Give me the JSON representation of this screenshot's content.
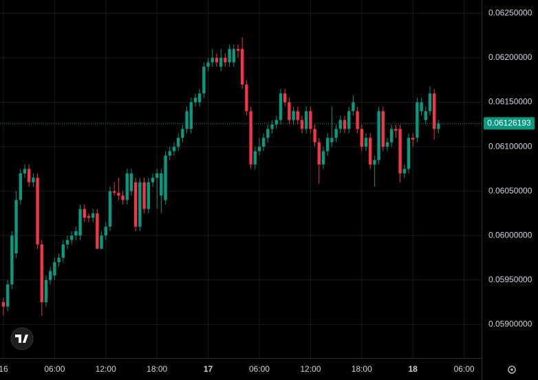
{
  "chart_data": {
    "type": "candlestick",
    "up_color": "#089981",
    "down_color": "#f23645",
    "xlim": [
      -0.4,
      56.05
    ],
    "xticks": [
      {
        "value": 0,
        "label": "16"
      },
      {
        "value": 6,
        "label": "06:00"
      },
      {
        "value": 12,
        "label": "12:00"
      },
      {
        "value": 18,
        "label": "18:00"
      },
      {
        "value": 24,
        "label": "17"
      },
      {
        "value": 30,
        "label": "06:00"
      },
      {
        "value": 36,
        "label": "12:00"
      },
      {
        "value": 42,
        "label": "18:00"
      },
      {
        "value": 48,
        "label": "18"
      },
      {
        "value": 54,
        "label": "06:00"
      }
    ],
    "ylim": [
      0.05863,
      0.06262
    ],
    "yticks": [
      {
        "value": 0.059,
        "label": "0.05900000"
      },
      {
        "value": 0.0595,
        "label": "0.05950000"
      },
      {
        "value": 0.06,
        "label": "0.06000000"
      },
      {
        "value": 0.0605,
        "label": "0.06050000"
      },
      {
        "value": 0.061,
        "label": "0.06100000"
      },
      {
        "value": 0.0615,
        "label": "0.06150000"
      },
      {
        "value": 0.062,
        "label": "0.06200000"
      },
      {
        "value": 0.0625,
        "label": "0.06250000"
      }
    ],
    "grid": true,
    "last_price": 0.06126193,
    "x": [
      0,
      0.5,
      1,
      1.5,
      2,
      2.5,
      3,
      3.5,
      4,
      4.5,
      5,
      5.5,
      6,
      6.5,
      7,
      7.5,
      8,
      8.5,
      9,
      9.5,
      10,
      10.5,
      11,
      11.5,
      12,
      12.5,
      13,
      13.5,
      14,
      14.5,
      15,
      15.5,
      16,
      16.5,
      17,
      17.5,
      18,
      18.5,
      19,
      19.5,
      20,
      20.5,
      21,
      21.5,
      22,
      22.5,
      23,
      23.5,
      24,
      24.5,
      25,
      25.5,
      26,
      26.5,
      27,
      27.5,
      28,
      28.5,
      29,
      29.5,
      30,
      30.5,
      31,
      31.5,
      32,
      32.5,
      33,
      33.5,
      34,
      34.5,
      35,
      35.5,
      36,
      36.5,
      37,
      37.5,
      38,
      38.5,
      39,
      39.5,
      40,
      40.5,
      41,
      41.5,
      42,
      42.5,
      43,
      43.5,
      44,
      44.5,
      45,
      45.5,
      46,
      46.5,
      47,
      47.5,
      48,
      48.5,
      49,
      49.5,
      50,
      50.5,
      51
    ],
    "ohlc": [
      [
        0.05925,
        0.0593,
        0.0591,
        0.0592
      ],
      [
        0.0592,
        0.0595,
        0.05915,
        0.05945
      ],
      [
        0.05945,
        0.06005,
        0.0594,
        0.06
      ],
      [
        0.0598,
        0.0605,
        0.05975,
        0.0604
      ],
      [
        0.0604,
        0.06075,
        0.06035,
        0.0607
      ],
      [
        0.0607,
        0.0608,
        0.06065,
        0.06075
      ],
      [
        0.06075,
        0.0608,
        0.06055,
        0.0606
      ],
      [
        0.0606,
        0.0607,
        0.06055,
        0.06065
      ],
      [
        0.06065,
        0.0607,
        0.05985,
        0.0599
      ],
      [
        0.0599,
        0.05995,
        0.0591,
        0.05925
      ],
      [
        0.05925,
        0.05955,
        0.0592,
        0.0595
      ],
      [
        0.0595,
        0.05965,
        0.05945,
        0.0596
      ],
      [
        0.05955,
        0.05975,
        0.0595,
        0.0597
      ],
      [
        0.0597,
        0.0598,
        0.05965,
        0.05975
      ],
      [
        0.05975,
        0.05995,
        0.0597,
        0.0599
      ],
      [
        0.0599,
        0.06,
        0.05985,
        0.05995
      ],
      [
        0.05995,
        0.06005,
        0.0599,
        0.06
      ],
      [
        0.06,
        0.0601,
        0.05995,
        0.06005
      ],
      [
        0.06,
        0.06035,
        0.05995,
        0.0603
      ],
      [
        0.0603,
        0.06035,
        0.06015,
        0.0602
      ],
      [
        0.06022,
        0.06025,
        0.06015,
        0.0602
      ],
      [
        0.0602,
        0.0603,
        0.06015,
        0.06025
      ],
      [
        0.06025,
        0.0603,
        0.05985,
        0.05985
      ],
      [
        0.05985,
        0.06005,
        0.05985,
        0.06
      ],
      [
        0.06,
        0.06015,
        0.05995,
        0.0601
      ],
      [
        0.0601,
        0.06055,
        0.06005,
        0.0605
      ],
      [
        0.0605,
        0.0606,
        0.06045,
        0.06048
      ],
      [
        0.06048,
        0.06065,
        0.0604,
        0.06045
      ],
      [
        0.06045,
        0.0605,
        0.06035,
        0.0604
      ],
      [
        0.0604,
        0.06075,
        0.06035,
        0.0607
      ],
      [
        0.0605,
        0.06075,
        0.06045,
        0.0607
      ],
      [
        0.0606,
        0.06065,
        0.06005,
        0.0601
      ],
      [
        0.0601,
        0.06065,
        0.06005,
        0.0606
      ],
      [
        0.0606,
        0.06065,
        0.06025,
        0.0603
      ],
      [
        0.0603,
        0.06065,
        0.06025,
        0.0606
      ],
      [
        0.0606,
        0.0607,
        0.06055,
        0.06065
      ],
      [
        0.06065,
        0.06075,
        0.0603,
        0.0607
      ],
      [
        0.06045,
        0.06075,
        0.06025,
        0.0607
      ],
      [
        0.0604,
        0.06095,
        0.06035,
        0.0609
      ],
      [
        0.0609,
        0.061,
        0.06085,
        0.06095
      ],
      [
        0.06095,
        0.06105,
        0.0609,
        0.061
      ],
      [
        0.061,
        0.06115,
        0.06095,
        0.0611
      ],
      [
        0.0611,
        0.06125,
        0.06105,
        0.0612
      ],
      [
        0.0612,
        0.06145,
        0.06115,
        0.0614
      ],
      [
        0.0612,
        0.06155,
        0.06115,
        0.0615
      ],
      [
        0.0615,
        0.0616,
        0.06145,
        0.06155
      ],
      [
        0.0615,
        0.06165,
        0.06145,
        0.0616
      ],
      [
        0.0616,
        0.06195,
        0.06155,
        0.0619
      ],
      [
        0.0619,
        0.062,
        0.06185,
        0.06195
      ],
      [
        0.06195,
        0.0621,
        0.0619,
        0.062
      ],
      [
        0.062,
        0.06205,
        0.0619,
        0.06195
      ],
      [
        0.0619,
        0.0621,
        0.06185,
        0.062
      ],
      [
        0.062,
        0.06205,
        0.0619,
        0.06195
      ],
      [
        0.06195,
        0.06215,
        0.0619,
        0.0621
      ],
      [
        0.06195,
        0.06215,
        0.0619,
        0.0621
      ],
      [
        0.0621,
        0.06215,
        0.062,
        0.06208
      ],
      [
        0.0621,
        0.06223,
        0.06165,
        0.0617
      ],
      [
        0.0617,
        0.06175,
        0.06135,
        0.0614
      ],
      [
        0.0614,
        0.06145,
        0.06075,
        0.0608
      ],
      [
        0.0608,
        0.061,
        0.06075,
        0.06095
      ],
      [
        0.06095,
        0.0611,
        0.0609,
        0.061
      ],
      [
        0.061,
        0.06115,
        0.06095,
        0.0611
      ],
      [
        0.0611,
        0.06125,
        0.06105,
        0.0612
      ],
      [
        0.0612,
        0.0613,
        0.06115,
        0.06125
      ],
      [
        0.06125,
        0.06135,
        0.0612,
        0.0613
      ],
      [
        0.0613,
        0.06165,
        0.06125,
        0.0616
      ],
      [
        0.0616,
        0.06165,
        0.06145,
        0.0615
      ],
      [
        0.0615,
        0.06155,
        0.06125,
        0.0613
      ],
      [
        0.0613,
        0.06145,
        0.06125,
        0.0614
      ],
      [
        0.0614,
        0.06145,
        0.06125,
        0.0613
      ],
      [
        0.0613,
        0.06135,
        0.06115,
        0.0612
      ],
      [
        0.0612,
        0.06145,
        0.06115,
        0.0614
      ],
      [
        0.0614,
        0.06145,
        0.06115,
        0.0612
      ],
      [
        0.0612,
        0.06125,
        0.061,
        0.06105
      ],
      [
        0.06105,
        0.0611,
        0.06058,
        0.0608
      ],
      [
        0.0608,
        0.061,
        0.06075,
        0.06095
      ],
      [
        0.06095,
        0.06115,
        0.0609,
        0.0611
      ],
      [
        0.06105,
        0.06145,
        0.061,
        0.0611
      ],
      [
        0.0611,
        0.06125,
        0.06105,
        0.0612
      ],
      [
        0.0612,
        0.06135,
        0.06115,
        0.0613
      ],
      [
        0.0613,
        0.06135,
        0.06115,
        0.0612
      ],
      [
        0.0612,
        0.06145,
        0.06115,
        0.0614
      ],
      [
        0.0614,
        0.06158,
        0.06135,
        0.0615
      ],
      [
        0.0614,
        0.06145,
        0.06115,
        0.0612
      ],
      [
        0.0612,
        0.06125,
        0.06095,
        0.061
      ],
      [
        0.061,
        0.06115,
        0.06095,
        0.0611
      ],
      [
        0.0611,
        0.06115,
        0.06075,
        0.0608
      ],
      [
        0.0608,
        0.0609,
        0.06055,
        0.06085
      ],
      [
        0.06085,
        0.06145,
        0.0608,
        0.0614
      ],
      [
        0.0614,
        0.06145,
        0.06095,
        0.061
      ],
      [
        0.061,
        0.0611,
        0.06095,
        0.06105
      ],
      [
        0.06105,
        0.06125,
        0.061,
        0.0612
      ],
      [
        0.0612,
        0.06125,
        0.0611,
        0.06118
      ],
      [
        0.0612,
        0.06125,
        0.0606,
        0.0607
      ],
      [
        0.0607,
        0.0608,
        0.06065,
        0.06075
      ],
      [
        0.06075,
        0.06115,
        0.0607,
        0.0611
      ],
      [
        0.0611,
        0.06115,
        0.061,
        0.06108
      ],
      [
        0.0611,
        0.06155,
        0.06105,
        0.0615
      ],
      [
        0.0614,
        0.06155,
        0.06135,
        0.0615
      ],
      [
        0.0613,
        0.06145,
        0.06125,
        0.0614
      ],
      [
        0.0614,
        0.06168,
        0.06135,
        0.0616
      ],
      [
        0.0616,
        0.06165,
        0.06108,
        0.0612
      ],
      [
        0.0612,
        0.0613,
        0.06115,
        0.06126
      ]
    ]
  }
}
